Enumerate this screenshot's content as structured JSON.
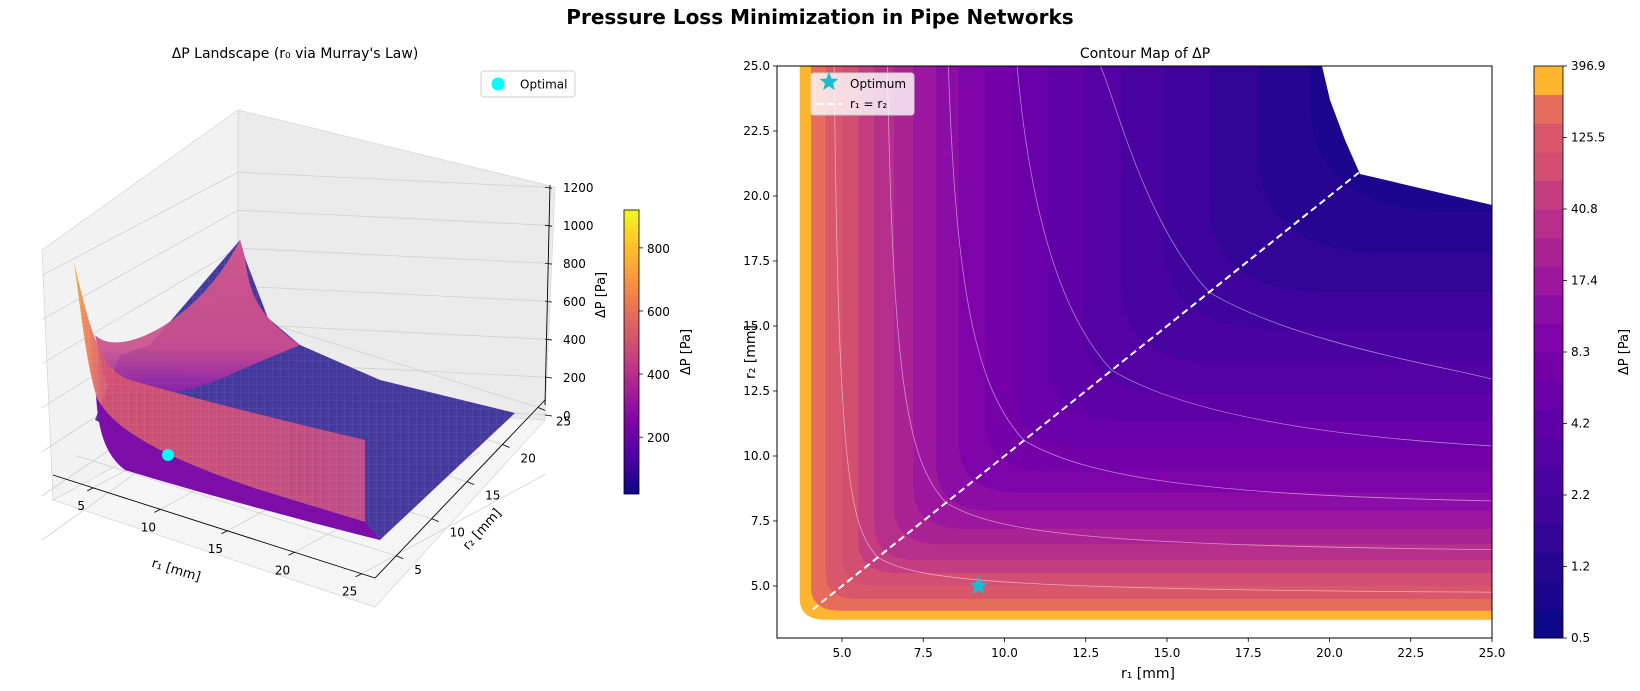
{
  "figure": {
    "suptitle": "Pressure Loss Minimization in Pipe Networks"
  },
  "chart_data": [
    {
      "type": "surface3d",
      "title": "ΔP Landscape (r₀ via Murray's Law)",
      "xlabel": "r₁ [mm]",
      "ylabel": "r₂ [mm]",
      "zlabel": "ΔP [Pa]",
      "x_ticks": [
        "5",
        "10",
        "15",
        "20",
        "25"
      ],
      "y_ticks": [
        "5",
        "10",
        "15",
        "20",
        "25"
      ],
      "z_ticks": [
        "0",
        "200",
        "400",
        "600",
        "800",
        "1000",
        "1200"
      ],
      "xlim": [
        2,
        26
      ],
      "ylim": [
        2,
        26
      ],
      "zlim": [
        0,
        1300
      ],
      "colormap": "plasma",
      "colorbar": {
        "label": "ΔP [Pa]",
        "ticks": [
          "200",
          "400",
          "600",
          "800"
        ],
        "range": [
          20,
          920
        ]
      },
      "legend": {
        "entries": [
          {
            "label": "Optimal",
            "marker": "circle",
            "color": "#00ffff"
          }
        ],
        "placement": "upper-right"
      },
      "optimal_point": {
        "r1": 9.2,
        "r2": 5.0,
        "dP": 20
      },
      "surface_peak": {
        "r1": 3.0,
        "r2": 3.0,
        "dP": 900
      }
    },
    {
      "type": "contourf",
      "title": "Contour Map of ΔP",
      "xlabel": "r₁ [mm]",
      "ylabel": "r₂ [mm]",
      "x_ticks": [
        "5.0",
        "7.5",
        "10.0",
        "12.5",
        "15.0",
        "17.5",
        "20.0",
        "22.5",
        "25.0"
      ],
      "y_ticks": [
        "5.0",
        "7.5",
        "10.0",
        "12.5",
        "15.0",
        "17.5",
        "20.0",
        "22.5",
        "25.0"
      ],
      "xlim": [
        3.0,
        25.0
      ],
      "ylim": [
        3.0,
        25.0
      ],
      "colorbar": {
        "label": "ΔP [Pa]",
        "scale": "log",
        "ticks": [
          "0.5",
          "1.2",
          "2.2",
          "4.2",
          "8.3",
          "17.4",
          "40.8",
          "125.5",
          "396.9"
        ],
        "levels_count": 20,
        "colors": [
          "#0d0887",
          "#1b068d",
          "#260591",
          "#330597",
          "#3e049c",
          "#4903a0",
          "#5402a3",
          "#5f01a6",
          "#6a00a8",
          "#7401a8",
          "#7e03a8",
          "#8a0da5",
          "#9c179e",
          "#aa2395",
          "#b6308b",
          "#c33d80",
          "#d24f71",
          "#d8576b",
          "#e66c5c",
          "#fdb42f"
        ]
      },
      "legend": {
        "entries": [
          {
            "label": "Optimum",
            "marker": "star",
            "color": "#17becf"
          },
          {
            "label": "r₁ = r₂",
            "marker": "dashed-line",
            "color": "#ffffff"
          }
        ],
        "placement": "upper-left"
      },
      "optimum": {
        "r1": 9.2,
        "r2": 5.0
      },
      "diagonal_line": {
        "from": [
          4.1,
          4.1
        ],
        "to": [
          20.9,
          20.9
        ]
      },
      "contour_lines_at": [
        6.1,
        8.2,
        10.6,
        13.3,
        16.3
      ],
      "nan_region": "upper-right beyond r₁+r₂ constraint"
    }
  ]
}
